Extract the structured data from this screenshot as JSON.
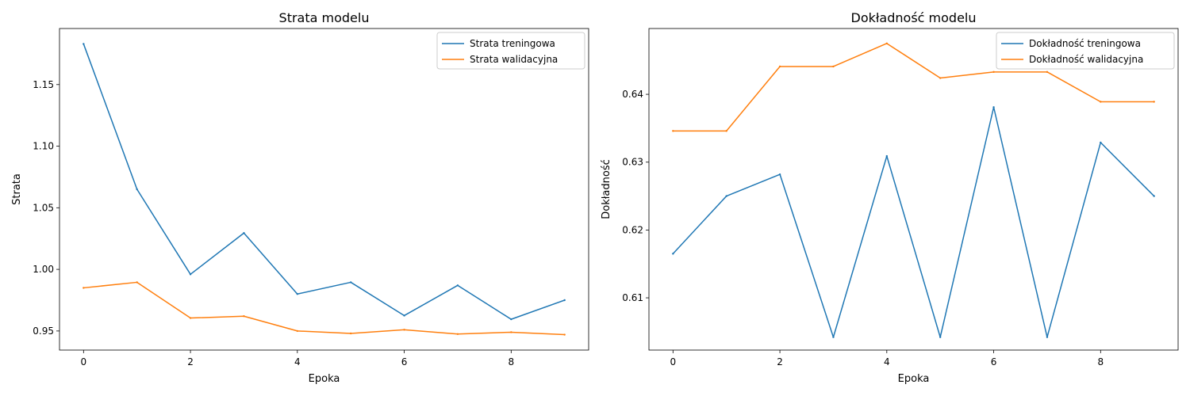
{
  "chart_data": [
    {
      "type": "line",
      "title": "Strata modelu",
      "xlabel": "Epoka",
      "ylabel": "Strata",
      "x": [
        0,
        1,
        2,
        3,
        4,
        5,
        6,
        7,
        8,
        9
      ],
      "xlim": [
        -0.45,
        9.45
      ],
      "ylim": [
        0.9345,
        1.1955
      ],
      "xticks": [
        0,
        2,
        4,
        6,
        8
      ],
      "yticks": [
        0.95,
        1.0,
        1.05,
        1.1,
        1.15
      ],
      "ytick_decimals": 2,
      "legend_position": "upper right",
      "series": [
        {
          "name": "Strata treningowa",
          "color": "#1f77b4",
          "values": [
            1.183,
            1.065,
            0.996,
            1.0295,
            0.98,
            0.9895,
            0.9625,
            0.987,
            0.9595,
            0.975
          ]
        },
        {
          "name": "Strata walidacyjna",
          "color": "#ff7f0e",
          "values": [
            0.985,
            0.9895,
            0.9605,
            0.962,
            0.95,
            0.948,
            0.951,
            0.9475,
            0.949,
            0.947
          ]
        }
      ]
    },
    {
      "type": "line",
      "title": "Dokładność modelu",
      "xlabel": "Epoka",
      "ylabel": "Dokładność",
      "x": [
        0,
        1,
        2,
        3,
        4,
        5,
        6,
        7,
        8,
        9
      ],
      "xlim": [
        -0.45,
        9.45
      ],
      "ylim": [
        0.6023,
        0.6497
      ],
      "xticks": [
        0,
        2,
        4,
        6,
        8
      ],
      "yticks": [
        0.61,
        0.62,
        0.63,
        0.64
      ],
      "ytick_decimals": 2,
      "legend_position": "upper right",
      "series": [
        {
          "name": "Dokładność treningowa",
          "color": "#1f77b4",
          "values": [
            0.6165,
            0.625,
            0.6282,
            0.6042,
            0.6309,
            0.6042,
            0.6381,
            0.6042,
            0.6329,
            0.625
          ]
        },
        {
          "name": "Dokładność walidacyjna",
          "color": "#ff7f0e",
          "values": [
            0.6346,
            0.6346,
            0.6441,
            0.6441,
            0.6475,
            0.6424,
            0.6433,
            0.6433,
            0.6389,
            0.6389
          ]
        }
      ]
    }
  ]
}
